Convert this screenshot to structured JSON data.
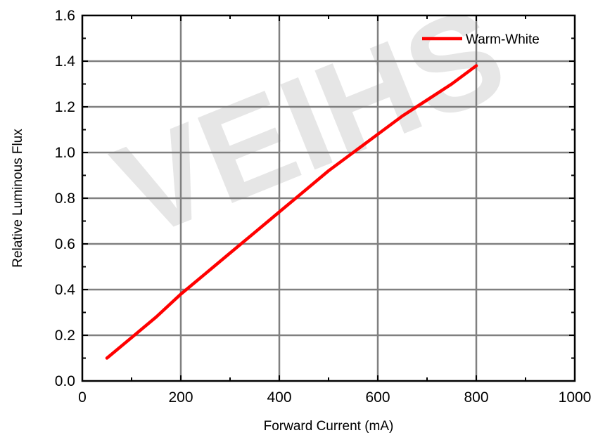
{
  "watermark": "VEIHS",
  "chart_data": {
    "type": "line",
    "xlabel": "Forward Current (mA)",
    "ylabel": "Relative Luminous Flux",
    "xlim": [
      0,
      1000
    ],
    "ylim": [
      0.0,
      1.6
    ],
    "xticks": [
      0,
      200,
      400,
      600,
      800,
      1000
    ],
    "xtick_labels": [
      "0",
      "200",
      "400",
      "600",
      "800",
      "1000"
    ],
    "yticks": [
      0.0,
      0.2,
      0.4,
      0.6,
      0.8,
      1.0,
      1.2,
      1.4,
      1.6
    ],
    "ytick_labels": [
      "0.0",
      "0.2",
      "0.4",
      "0.6",
      "0.8",
      "1.0",
      "1.2",
      "1.4",
      "1.6"
    ],
    "grid": true,
    "legend_position": "top-right",
    "series": [
      {
        "name": "Warm-White",
        "color": "#ff0000",
        "x": [
          50,
          100,
          150,
          200,
          250,
          300,
          350,
          400,
          450,
          500,
          550,
          600,
          650,
          700,
          750,
          800
        ],
        "y": [
          0.1,
          0.19,
          0.28,
          0.38,
          0.47,
          0.56,
          0.65,
          0.74,
          0.83,
          0.92,
          1.0,
          1.08,
          1.16,
          1.23,
          1.3,
          1.38
        ]
      }
    ]
  }
}
